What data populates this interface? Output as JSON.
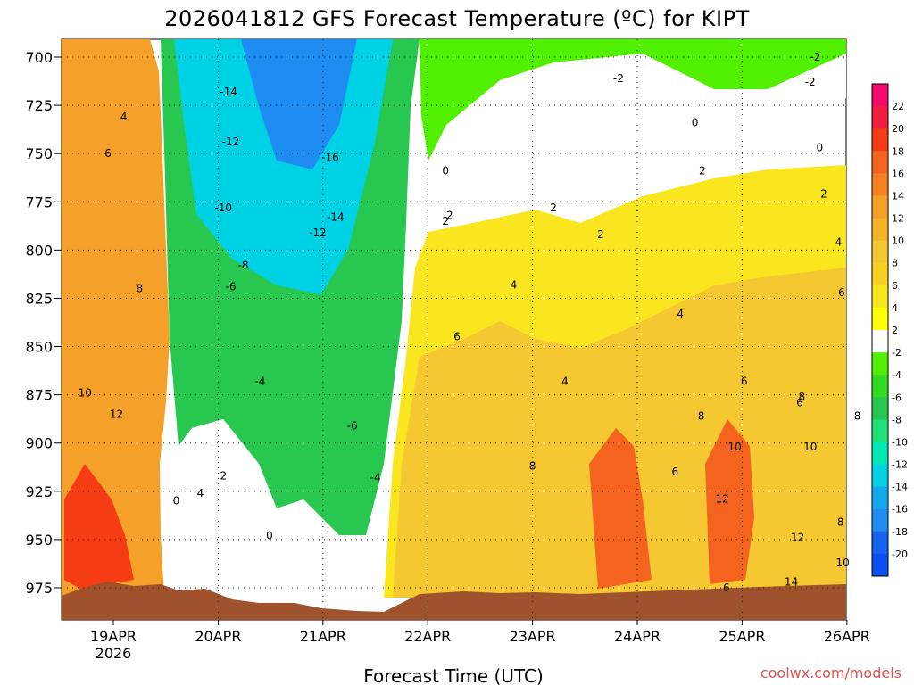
{
  "chart_data": {
    "type": "heatmap",
    "title": "2026041812 GFS Forecast Temperature (ºC) for KIPT",
    "xlabel": "Forecast Time (UTC)",
    "ylabel": "",
    "credit": "coolwx.com/models",
    "y_pressure_ticks": [
      "700",
      "725",
      "750",
      "775",
      "800",
      "825",
      "850",
      "875",
      "900",
      "925",
      "950",
      "975"
    ],
    "ylim": [
      992,
      695
    ],
    "x_date_ticks": [
      "19APR",
      "20APR",
      "21APR",
      "22APR",
      "23APR",
      "24APR",
      "25APR",
      "26APR"
    ],
    "x_year_label": "2026",
    "xlim_days": [
      -0.5,
      7.0
    ],
    "colorbar_labels": [
      "22",
      "20",
      "18",
      "16",
      "14",
      "12",
      "10",
      "8",
      "6",
      "4",
      "2",
      "-2",
      "-4",
      "-6",
      "-8",
      "-10",
      "-12",
      "-14",
      "-16",
      "-18",
      "-20"
    ],
    "colorbar_colors": [
      "#f50a6e",
      "#f01e3c",
      "#f53c14",
      "#f5641e",
      "#f5821e",
      "#f5a028",
      "#f5b428",
      "#f5c832",
      "#fad21e",
      "#fae61e",
      "#ffff00",
      "#ffffff",
      "#50f000",
      "#32dc1e",
      "#28c850",
      "#1ee178",
      "#00e6b4",
      "#00d2e6",
      "#14aaf0",
      "#1e8cf0",
      "#1464f0",
      "#0a50f0"
    ],
    "regions": [
      {
        "name": "warm-morning-19apr",
        "value": 12
      },
      {
        "name": "cold-core-20-21apr",
        "value": -16
      },
      {
        "name": "freezing-band-above-22apr",
        "value": 0
      },
      {
        "name": "warm-layer-22-26apr",
        "value": 8
      }
    ],
    "contour_labels": [
      {
        "text": "4",
        "day": 0.1,
        "p": 731
      },
      {
        "text": "6",
        "day": -0.05,
        "p": 750
      },
      {
        "text": "8",
        "day": 0.25,
        "p": 820
      },
      {
        "text": "10",
        "day": -0.27,
        "p": 874
      },
      {
        "text": "12",
        "day": 0.03,
        "p": 885
      },
      {
        "text": "-14",
        "day": 1.1,
        "p": 718
      },
      {
        "text": "-12",
        "day": 1.12,
        "p": 744
      },
      {
        "text": "-10",
        "day": 1.05,
        "p": 778
      },
      {
        "text": "-8",
        "day": 1.24,
        "p": 808
      },
      {
        "text": "-6",
        "day": 1.12,
        "p": 819
      },
      {
        "text": "-4",
        "day": 1.4,
        "p": 868
      },
      {
        "text": "2",
        "day": 1.05,
        "p": 917
      },
      {
        "text": "4",
        "day": 0.83,
        "p": 926
      },
      {
        "text": "0",
        "day": 0.6,
        "p": 930
      },
      {
        "text": "0",
        "day": 1.49,
        "p": 948
      },
      {
        "text": "-16",
        "day": 2.07,
        "p": 752
      },
      {
        "text": "-14",
        "day": 2.12,
        "p": 783
      },
      {
        "text": "-12",
        "day": 1.95,
        "p": 791
      },
      {
        "text": "-6",
        "day": 2.28,
        "p": 891
      },
      {
        "text": "-4",
        "day": 2.5,
        "p": 918
      },
      {
        "text": "0",
        "day": 3.17,
        "p": 759
      },
      {
        "text": "2",
        "day": 3.17,
        "p": 785
      },
      {
        "text": "2",
        "day": 3.21,
        "p": 782
      },
      {
        "text": "6",
        "day": 3.28,
        "p": 845
      },
      {
        "text": "-2",
        "day": 4.82,
        "p": 711
      },
      {
        "text": "4",
        "day": 3.82,
        "p": 818
      },
      {
        "text": "2",
        "day": 4.2,
        "p": 778
      },
      {
        "text": "2",
        "day": 4.65,
        "p": 792
      },
      {
        "text": "4",
        "day": 4.31,
        "p": 868
      },
      {
        "text": "8",
        "day": 4.0,
        "p": 912
      },
      {
        "text": "0",
        "day": 5.55,
        "p": 734
      },
      {
        "text": "2",
        "day": 5.62,
        "p": 759
      },
      {
        "text": "4",
        "day": 5.41,
        "p": 833
      },
      {
        "text": "6",
        "day": 6.02,
        "p": 868
      },
      {
        "text": "6",
        "day": 5.36,
        "p": 915
      },
      {
        "text": "8",
        "day": 5.61,
        "p": 886
      },
      {
        "text": "10",
        "day": 5.93,
        "p": 902
      },
      {
        "text": "12",
        "day": 5.81,
        "p": 929
      },
      {
        "text": "6",
        "day": 6.55,
        "p": 879
      },
      {
        "text": "8",
        "day": 6.57,
        "p": 876
      },
      {
        "text": "10",
        "day": 6.65,
        "p": 902
      },
      {
        "text": "12",
        "day": 6.53,
        "p": 949
      },
      {
        "text": "14",
        "day": 6.47,
        "p": 972
      },
      {
        "text": "6",
        "day": 5.85,
        "p": 975
      },
      {
        "text": "-2",
        "day": 6.7,
        "p": 700
      },
      {
        "text": "-2",
        "day": 6.65,
        "p": 713
      },
      {
        "text": "0",
        "day": 6.74,
        "p": 747
      },
      {
        "text": "2",
        "day": 6.78,
        "p": 771
      },
      {
        "text": "4",
        "day": 6.92,
        "p": 796
      },
      {
        "text": "6",
        "day": 6.95,
        "p": 822
      },
      {
        "text": "8",
        "day": 7.1,
        "p": 886
      },
      {
        "text": "8",
        "day": 6.94,
        "p": 941
      },
      {
        "text": "10",
        "day": 6.96,
        "p": 962
      }
    ]
  }
}
